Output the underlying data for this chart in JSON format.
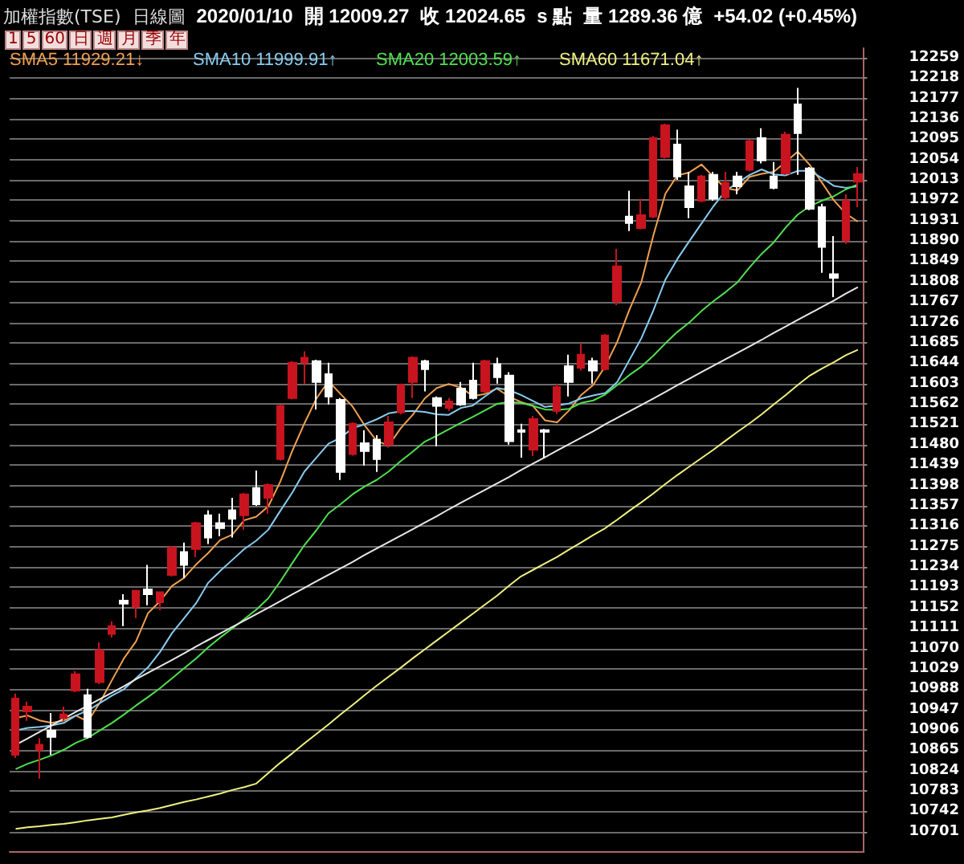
{
  "chart_data": {
    "type": "candlestick",
    "title": "加權指數(TSE)",
    "subtitle": "日線圖",
    "annotations": [
      "2020/01/10",
      "開 12009.27",
      "收 12024.65",
      "s 點",
      "量 1289.36 億",
      "+54.02 (+0.45%)",
      "1 5 60 日 週 月 季 年"
    ],
    "categories": [
      null,
      null,
      null,
      null,
      null,
      null,
      null,
      null,
      null,
      null,
      null,
      null,
      null,
      null,
      null,
      null,
      null,
      null,
      null,
      null,
      null,
      null,
      null,
      null,
      null,
      null,
      null,
      null,
      null,
      null,
      null,
      null,
      null,
      null,
      null,
      null,
      null,
      null,
      null,
      null,
      null,
      null,
      null,
      null,
      null,
      null,
      null,
      null,
      null,
      null,
      null,
      null,
      null,
      null,
      null,
      null,
      null,
      null,
      null,
      null,
      null,
      null,
      null,
      null,
      null,
      null,
      null,
      null,
      null,
      null,
      null
    ],
    "ohlc": [
      [
        10856,
        10979,
        10850,
        10969
      ],
      [
        10943,
        10963,
        10924,
        10953
      ],
      [
        10866,
        10889,
        10808,
        10876
      ],
      [
        10905,
        10940,
        10856,
        10892
      ],
      [
        10930,
        10953,
        10924,
        10937
      ],
      [
        10985,
        11024,
        10982,
        11018
      ],
      [
        10976,
        10989,
        10889,
        10892
      ],
      [
        11002,
        11082,
        10998,
        11066
      ],
      [
        11099,
        11124,
        11092,
        11115
      ],
      [
        11166,
        11179,
        11115,
        11160
      ],
      [
        11154,
        11186,
        11131,
        11186
      ],
      [
        11189,
        11238,
        11157,
        11179
      ],
      [
        11163,
        11183,
        11147,
        11183
      ],
      [
        11218,
        11276,
        11215,
        11273
      ],
      [
        11264,
        11283,
        11212,
        11238
      ],
      [
        11270,
        11325,
        11254,
        11322
      ],
      [
        11338,
        11348,
        11280,
        11293
      ],
      [
        11322,
        11341,
        11296,
        11312
      ],
      [
        11348,
        11373,
        11293,
        11331
      ],
      [
        11338,
        11383,
        11309,
        11380
      ],
      [
        11393,
        11428,
        11357,
        11360
      ],
      [
        11373,
        11402,
        11341,
        11399
      ],
      [
        11451,
        11561,
        11448,
        11558
      ],
      [
        11574,
        11648,
        11571,
        11645
      ],
      [
        11645,
        11668,
        11603,
        11655
      ],
      [
        11648,
        11651,
        11551,
        11606
      ],
      [
        11622,
        11645,
        11561,
        11577
      ],
      [
        11570,
        11574,
        11409,
        11425
      ],
      [
        11461,
        11525,
        11458,
        11522
      ],
      [
        11483,
        11509,
        11438,
        11467
      ],
      [
        11490,
        11499,
        11425,
        11451
      ],
      [
        11480,
        11538,
        11474,
        11525
      ],
      [
        11545,
        11603,
        11541,
        11600
      ],
      [
        11606,
        11658,
        11574,
        11655
      ],
      [
        11648,
        11651,
        11587,
        11632
      ],
      [
        11574,
        11577,
        11477,
        11558
      ],
      [
        11554,
        11574,
        11548,
        11567
      ],
      [
        11593,
        11606,
        11558,
        11561
      ],
      [
        11609,
        11645,
        11571,
        11574
      ],
      [
        11587,
        11651,
        11584,
        11648
      ],
      [
        11642,
        11655,
        11603,
        11616
      ],
      [
        11619,
        11626,
        11480,
        11487
      ],
      [
        11509,
        11522,
        11454,
        11506
      ],
      [
        11470,
        11538,
        11457,
        11532
      ],
      [
        11509,
        11512,
        11454,
        11506
      ],
      [
        11548,
        11603,
        11542,
        11596
      ],
      [
        11638,
        11661,
        11577,
        11606
      ],
      [
        11635,
        11684,
        11629,
        11661
      ],
      [
        11648,
        11655,
        11603,
        11629
      ],
      [
        11632,
        11703,
        11629,
        11700
      ],
      [
        11768,
        11874,
        11761,
        11839
      ],
      [
        11939,
        11991,
        11910,
        11926
      ],
      [
        11916,
        11975,
        11913,
        11942
      ],
      [
        11939,
        12101,
        11936,
        12097
      ],
      [
        12059,
        12126,
        12056,
        12123
      ],
      [
        12084,
        12114,
        12013,
        12020
      ],
      [
        12000,
        12029,
        11936,
        11958
      ],
      [
        11971,
        12023,
        11968,
        12020
      ],
      [
        12023,
        12029,
        11971,
        11975
      ],
      [
        11978,
        12029,
        11971,
        12007
      ],
      [
        12020,
        12029,
        11984,
        12000
      ],
      [
        12033,
        12094,
        12030,
        12091
      ],
      [
        12097,
        12117,
        12046,
        12052
      ],
      [
        12020,
        12049,
        11994,
        11997
      ],
      [
        12026,
        12110,
        12023,
        12104
      ],
      [
        12165,
        12198,
        12023,
        12107
      ],
      [
        12036,
        12039,
        11952,
        11955
      ],
      [
        11958,
        11965,
        11826,
        11878
      ],
      [
        11823,
        11900,
        11777,
        11816
      ],
      [
        11891,
        11984,
        11884,
        11971
      ],
      [
        12009.27,
        12039,
        11958,
        12024.65
      ]
    ],
    "colors": [
      "#c8141e",
      "#c8141e",
      "#c8141e",
      "#ffffff",
      "#c8141e",
      "#c8141e",
      "#ffffff",
      "#c8141e",
      "#c8141e",
      "#ffffff",
      "#c8141e",
      "#ffffff",
      "#c8141e",
      "#c8141e",
      "#ffffff",
      "#c8141e",
      "#ffffff",
      "#ffffff",
      "#ffffff",
      "#c8141e",
      "#ffffff",
      "#c8141e",
      "#c8141e",
      "#c8141e",
      "#c8141e",
      "#ffffff",
      "#ffffff",
      "#ffffff",
      "#c8141e",
      "#ffffff",
      "#ffffff",
      "#c8141e",
      "#c8141e",
      "#c8141e",
      "#ffffff",
      "#ffffff",
      "#c8141e",
      "#ffffff",
      "#ffffff",
      "#c8141e",
      "#ffffff",
      "#ffffff",
      "#ffffff",
      "#c8141e",
      "#ffffff",
      "#c8141e",
      "#ffffff",
      "#c8141e",
      "#ffffff",
      "#c8141e",
      "#c8141e",
      "#ffffff",
      "#c8141e",
      "#c8141e",
      "#c8141e",
      "#ffffff",
      "#ffffff",
      "#c8141e",
      "#ffffff",
      "#c8141e",
      "#ffffff",
      "#c8141e",
      "#ffffff",
      "#ffffff",
      "#c8141e",
      "#ffffff",
      "#ffffff",
      "#ffffff",
      "#ffffff",
      "#c8141e",
      "#c8141e"
    ],
    "series": [
      {
        "name": "SMA5 11929.21↓",
        "type": "line",
        "color": "#f0a050",
        "values": [
          10930,
          10935,
          10925,
          10920,
          10925,
          10935,
          10923,
          10961,
          11006,
          11050,
          11084,
          11141,
          11165,
          11196,
          11212,
          11239,
          11262,
          11288,
          11299,
          11328,
          11335,
          11356,
          11406,
          11468,
          11523,
          11573,
          11608,
          11582,
          11557,
          11519,
          11488,
          11478,
          11513,
          11540,
          11573,
          11594,
          11602,
          11595,
          11578,
          11582,
          11593,
          11577,
          11566,
          11558,
          11529,
          11525,
          11549,
          11580,
          11600,
          11638,
          11687,
          11751,
          11807,
          11901,
          11985,
          12022,
          12028,
          12044,
          12019,
          11996,
          11992,
          12019,
          12025,
          12029,
          12049,
          12070,
          12043,
          12008,
          11972,
          11945,
          11929
        ]
      },
      {
        "name": "SMA10 11999.91↑",
        "type": "line",
        "color": "#88ccf0",
        "values": [
          10905,
          10910,
          10912,
          10915,
          10920,
          10935,
          10945,
          10960,
          10975,
          10988,
          11010,
          11032,
          11063,
          11101,
          11131,
          11161,
          11202,
          11226,
          11248,
          11270,
          11287,
          11309,
          11347,
          11384,
          11426,
          11454,
          11482,
          11494,
          11513,
          11521,
          11531,
          11543,
          11547,
          11548,
          11546,
          11541,
          11540,
          11554,
          11559,
          11577,
          11594,
          11590,
          11580,
          11568,
          11556,
          11559,
          11563,
          11573,
          11579,
          11584,
          11606,
          11650,
          11694,
          11750,
          11812,
          11854,
          11890,
          11925,
          11960,
          11991,
          12007,
          12023,
          12034,
          12024,
          12022,
          12031,
          12031,
          12017,
          12001,
          11997,
          12000
        ]
      },
      {
        "name": "SMA20 12003.59↑",
        "type": "line",
        "color": "#50e050",
        "values": [
          10827,
          10838,
          10846,
          10855,
          10866,
          10880,
          10890,
          10905,
          10920,
          10937,
          10955,
          10972,
          10990,
          11010,
          11030,
          11050,
          11072,
          11092,
          11110,
          11129,
          11148,
          11171,
          11205,
          11242,
          11278,
          11308,
          11342,
          11360,
          11380,
          11396,
          11409,
          11426,
          11447,
          11466,
          11486,
          11498,
          11511,
          11524,
          11536,
          11549,
          11562,
          11566,
          11564,
          11558,
          11551,
          11550,
          11552,
          11564,
          11569,
          11581,
          11600,
          11620,
          11637,
          11659,
          11684,
          11707,
          11726,
          11749,
          11769,
          11787,
          11807,
          11837,
          11864,
          11887,
          11917,
          11943,
          11960,
          11971,
          11980,
          11994,
          12004
        ]
      },
      {
        "name": "SMA60 11671.04↑",
        "type": "line",
        "color": "#f0f080",
        "values": [
          10707,
          10710,
          10712,
          10715,
          10717,
          10720,
          10724,
          10727,
          10730,
          10735,
          10740,
          10744,
          10749,
          10755,
          10761,
          10766,
          10772,
          10778,
          10785,
          10791,
          10798,
          10819,
          10840,
          10859,
          10879,
          10898,
          10917,
          10937,
          10956,
          10976,
          10995,
          11013,
          11031,
          11050,
          11068,
          11086,
          11104,
          11122,
          11140,
          11158,
          11176,
          11196,
          11215,
          11228,
          11241,
          11254,
          11269,
          11283,
          11298,
          11312,
          11329,
          11347,
          11364,
          11382,
          11401,
          11419,
          11436,
          11453,
          11470,
          11488,
          11506,
          11523,
          11541,
          11561,
          11580,
          11600,
          11619,
          11633,
          11646,
          11660,
          11671
        ]
      },
      {
        "type": "line",
        "color": "#e8e8e8",
        "values": [
          10876,
          10889,
          10902,
          10915,
          10929,
          10942,
          10955,
          10968,
          10981,
          10994,
          11008,
          11021,
          11034,
          11047,
          11060,
          11074,
          11087,
          11100,
          11113,
          11126,
          11139,
          11152,
          11165,
          11179,
          11192,
          11205,
          11218,
          11231,
          11244,
          11258,
          11271,
          11284,
          11297,
          11310,
          11323,
          11336,
          11350,
          11363,
          11376,
          11389,
          11402,
          11415,
          11429,
          11442,
          11455,
          11468,
          11481,
          11494,
          11507,
          11521,
          11534,
          11547,
          11560,
          11573,
          11586,
          11600,
          11613,
          11626,
          11639,
          11652,
          11665,
          11678,
          11691,
          11705,
          11718,
          11731,
          11744,
          11757,
          11770,
          11784,
          11797
        ]
      }
    ],
    "ylim": [
      10662,
      12278
    ],
    "yticks": [
      10701,
      10742,
      10783,
      10824,
      10865,
      10906,
      10947,
      10988,
      11029,
      11070,
      11111,
      11152,
      11193,
      11234,
      11275,
      11316,
      11357,
      11398,
      11439,
      11480,
      11521,
      11562,
      11603,
      11644,
      11685,
      11726,
      11767,
      11808,
      11849,
      11890,
      11931,
      11972,
      12013,
      12054,
      12095,
      12136,
      12177,
      12218,
      12259
    ],
    "grid": "y",
    "tick_labels": "y"
  }
}
